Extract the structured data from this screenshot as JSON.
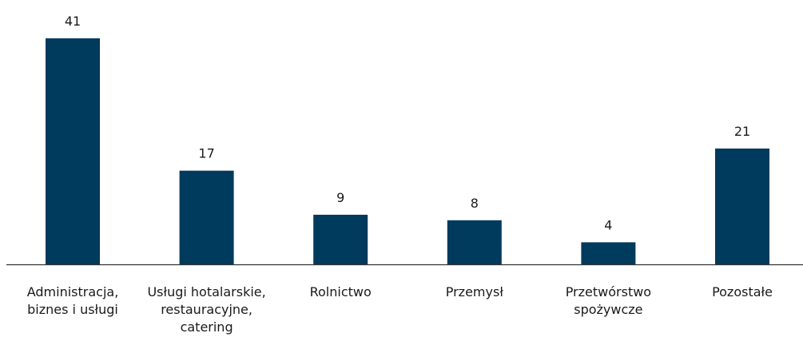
{
  "chart_data": {
    "type": "bar",
    "categories": [
      [
        "Administracja,",
        "biznes i usługi"
      ],
      [
        "Usługi hotalarskie,",
        "restauracyjne,",
        "catering"
      ],
      [
        "Rolnictwo"
      ],
      [
        "Przemysł"
      ],
      [
        "Przetwórstwo",
        "spożywcze"
      ],
      [
        "Pozostałe"
      ]
    ],
    "values": [
      41,
      17,
      9,
      8,
      4,
      21
    ],
    "data_labels": [
      "41",
      "17",
      "9",
      "8",
      "4",
      "21"
    ],
    "bar_color": "#003a5c",
    "axis_color": "#333333",
    "ylim": [
      0,
      41
    ],
    "grid": false,
    "legend": "none"
  }
}
